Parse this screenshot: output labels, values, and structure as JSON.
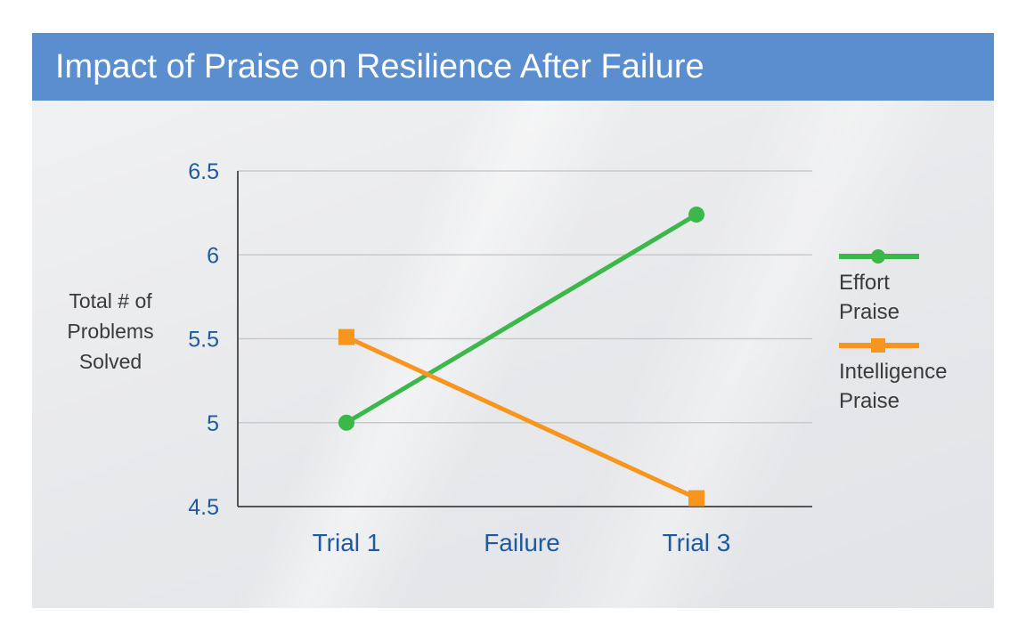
{
  "colors": {
    "title_bar": "#5b8ecf",
    "tick_label": "#1e5aa0",
    "effort": "#3cb84a",
    "intelligence": "#f7951f",
    "grid": "#c8c9cb",
    "axis": "#555555"
  },
  "chart_data": {
    "type": "line",
    "title": "Impact of Praise on Resilience After Failure",
    "ylabel_lines": [
      "Total # of",
      "Problems",
      "Solved"
    ],
    "xlabel": "",
    "categories": [
      "Trial 1",
      "Failure",
      "Trial 3"
    ],
    "y_ticks": [
      "6.5",
      "6",
      "5.5",
      "5",
      "4.5"
    ],
    "ylim": [
      4.5,
      6.5
    ],
    "grid": true,
    "legend_position": "right",
    "series": [
      {
        "name_lines": [
          "Effort",
          "Praise"
        ],
        "marker": "circle",
        "color": "#3cb84a",
        "points": [
          {
            "x": "Trial 1",
            "y": 5.0
          },
          {
            "x": "Trial 3",
            "y": 6.24
          }
        ]
      },
      {
        "name_lines": [
          "Intelligence",
          "Praise"
        ],
        "marker": "square",
        "color": "#f7951f",
        "points": [
          {
            "x": "Trial 1",
            "y": 5.51
          },
          {
            "x": "Trial 3",
            "y": 4.55
          }
        ]
      }
    ]
  }
}
